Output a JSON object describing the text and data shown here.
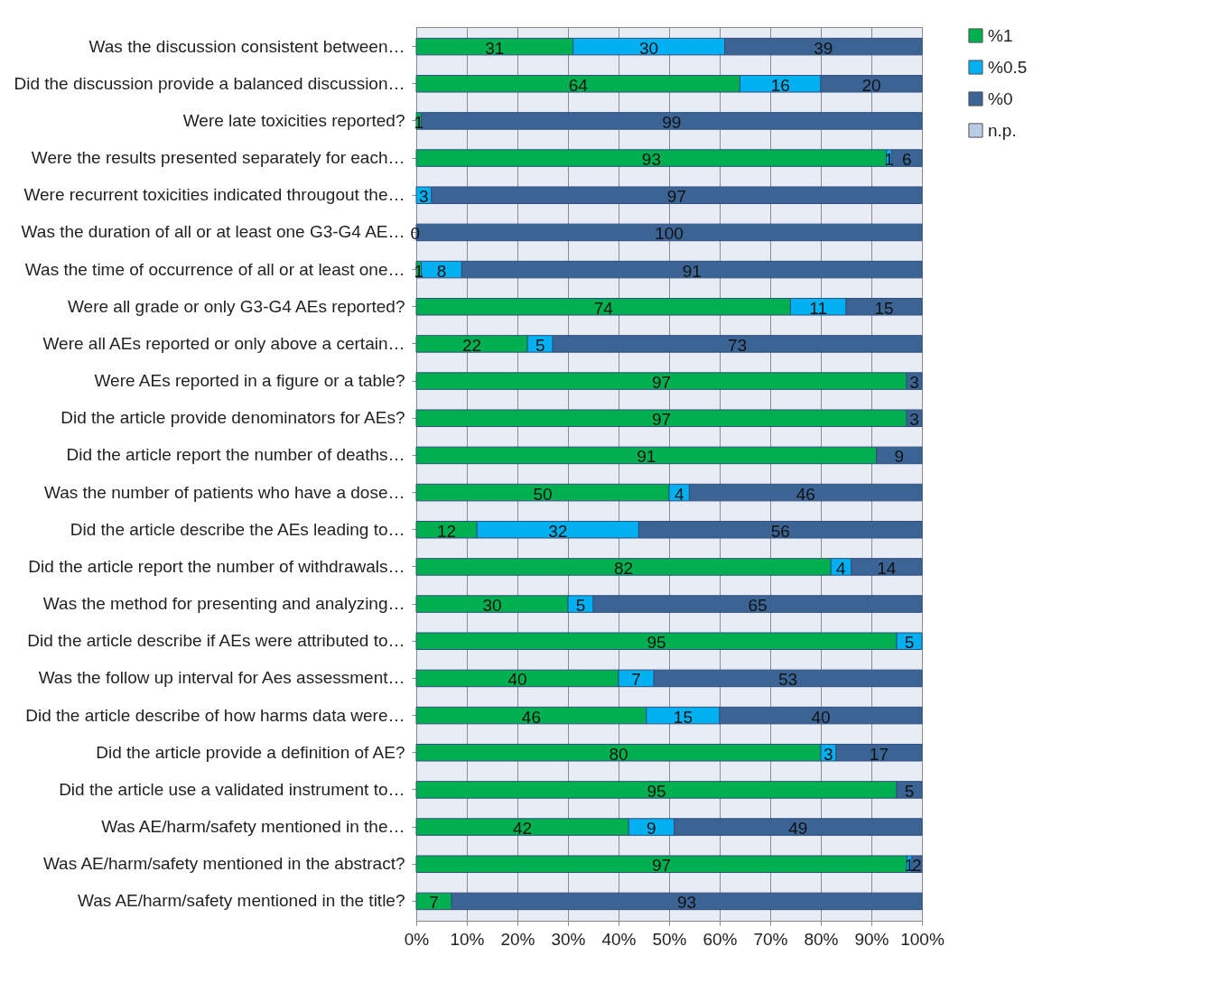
{
  "chart_data": {
    "type": "bar",
    "orientation": "horizontal",
    "stacked": true,
    "grid": "x",
    "legend": "right",
    "categories": [
      "Was the discussion consistent between…",
      "Did the discussion provide a balanced discussion…",
      "Were late toxicities reported?",
      "Were the results presented separately for each…",
      "Were recurrent toxicities indicated througout the…",
      "Was the duration of all or at least one G3-G4 AE…",
      "Was the time of occurrence of all or at least one…",
      "Were all grade or only G3-G4 AEs reported?",
      "Were all AEs reported or only above a certain…",
      "Were AEs reported in a figure or a table?",
      "Did the article provide denominators for AEs?",
      "Did the article report the number of deaths…",
      "Was the number of patients who have a dose…",
      "Did the article describe the AEs leading to…",
      "Did the article report the number of withdrawals…",
      "Was the method for presenting and analyzing…",
      "Did the article describe if AEs were attributed to…",
      "Was the follow up interval for Aes assessment…",
      "Did the article describe of how harms data were…",
      "Did the article provide a definition of AE?",
      "Did the article use a validated instrument to…",
      "Was AE/harm/safety mentioned in the…",
      "Was AE/harm/safety mentioned in the abstract?",
      "Was AE/harm/safety mentioned in the title?"
    ],
    "series": [
      {
        "name": "%1",
        "color": "#00b050",
        "values": [
          31,
          64,
          1,
          93,
          null,
          null,
          1,
          74,
          22,
          97,
          97,
          91,
          50,
          12,
          82,
          30,
          95,
          40,
          45.5,
          80,
          95,
          42,
          97,
          7
        ],
        "value_labels": [
          "31",
          "64",
          "1",
          "93",
          null,
          null,
          "1",
          "74",
          "22",
          "97",
          "97",
          "91",
          "50",
          "12",
          "82",
          "30",
          "95",
          "40",
          "46",
          "80",
          "95",
          "42",
          "97",
          "7"
        ]
      },
      {
        "name": "%0.5",
        "color": "#00b0f0",
        "values": [
          30,
          16,
          null,
          1,
          3,
          null,
          8,
          11,
          5,
          null,
          null,
          null,
          4,
          32,
          4,
          5,
          5,
          7,
          14.5,
          3,
          null,
          9,
          1,
          null
        ],
        "value_labels": [
          "30",
          "16",
          null,
          "1",
          "3",
          null,
          "8",
          "11",
          "5",
          null,
          null,
          null,
          "4",
          "32",
          "4",
          "5",
          "5",
          "7",
          "15",
          "3",
          null,
          "9",
          "1",
          null
        ]
      },
      {
        "name": "%0",
        "color": "#3b6495",
        "values": [
          39,
          20,
          99,
          6,
          97,
          100,
          91,
          15,
          73,
          3,
          3,
          9,
          46,
          56,
          14,
          65,
          null,
          53,
          40,
          17,
          5,
          49,
          2,
          93
        ],
        "value_labels": [
          "39",
          "20",
          "99",
          "6",
          "97",
          "100",
          "91",
          "15",
          "73",
          "3",
          "3",
          "9",
          "46",
          "56",
          "14",
          "65",
          null,
          "53",
          "40",
          "17",
          "5",
          "49",
          "2",
          "93"
        ]
      },
      {
        "name": "n.p.",
        "color": "#b8cce4",
        "values": [
          null,
          null,
          null,
          null,
          null,
          null,
          null,
          null,
          null,
          null,
          null,
          null,
          null,
          null,
          null,
          null,
          null,
          null,
          null,
          null,
          null,
          null,
          null,
          null
        ]
      }
    ],
    "annotations": [
      {
        "text": "0",
        "x": 0,
        "y": "Was the duration of all or at least one G3-G4 AE…"
      }
    ],
    "xlim": [
      0,
      100
    ],
    "xticks": [
      {
        "value": 0,
        "label": "0%"
      },
      {
        "value": 10,
        "label": "10%"
      },
      {
        "value": 20,
        "label": "20%"
      },
      {
        "value": 30,
        "label": "30%"
      },
      {
        "value": 40,
        "label": "40%"
      },
      {
        "value": 50,
        "label": "50%"
      },
      {
        "value": 60,
        "label": "60%"
      },
      {
        "value": 70,
        "label": "70%"
      },
      {
        "value": 80,
        "label": "80%"
      },
      {
        "value": 90,
        "label": "90%"
      },
      {
        "value": 100,
        "label": "100%"
      }
    ]
  }
}
